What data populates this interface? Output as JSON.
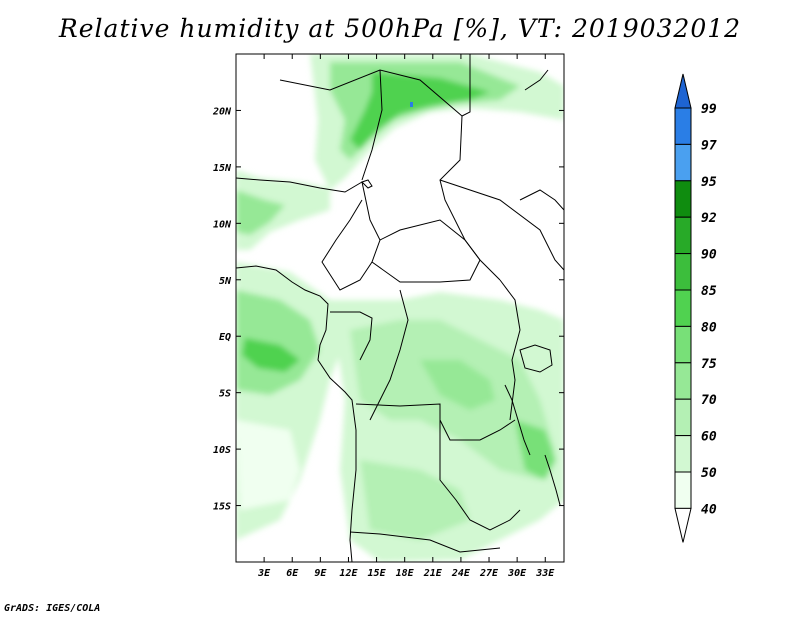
{
  "title": "Relative humidity at 500hPa [%], VT: 2019032012",
  "credit": "GrADS: IGES/COLA",
  "map": {
    "lon_ticks": [
      "3E",
      "6E",
      "9E",
      "12E",
      "15E",
      "18E",
      "21E",
      "24E",
      "27E",
      "30E",
      "33E"
    ],
    "lat_ticks": [
      "20N",
      "15N",
      "10N",
      "5N",
      "EQ",
      "5S",
      "10S",
      "15S"
    ],
    "lon_range": [
      0,
      35
    ],
    "lat_range": [
      -20,
      25
    ]
  },
  "colorbar": {
    "levels": [
      "99",
      "97",
      "95",
      "92",
      "90",
      "85",
      "80",
      "75",
      "70",
      "60",
      "50",
      "40"
    ],
    "colors": [
      "#1e64d2",
      "#2a7ee6",
      "#4aa0f0",
      "#0f8c0f",
      "#28aa28",
      "#3cbe3c",
      "#50d250",
      "#78e078",
      "#96e896",
      "#b4f0b4",
      "#d2f8d2",
      "#f0fff0",
      "#ffffff"
    ]
  },
  "palette": {
    "g1": "#f0fff0",
    "g2": "#d2f8d2",
    "g3": "#b4f0b4",
    "g4": "#96e896",
    "g5": "#78e078",
    "g6": "#50d250",
    "blue": "#2a7ee6"
  }
}
